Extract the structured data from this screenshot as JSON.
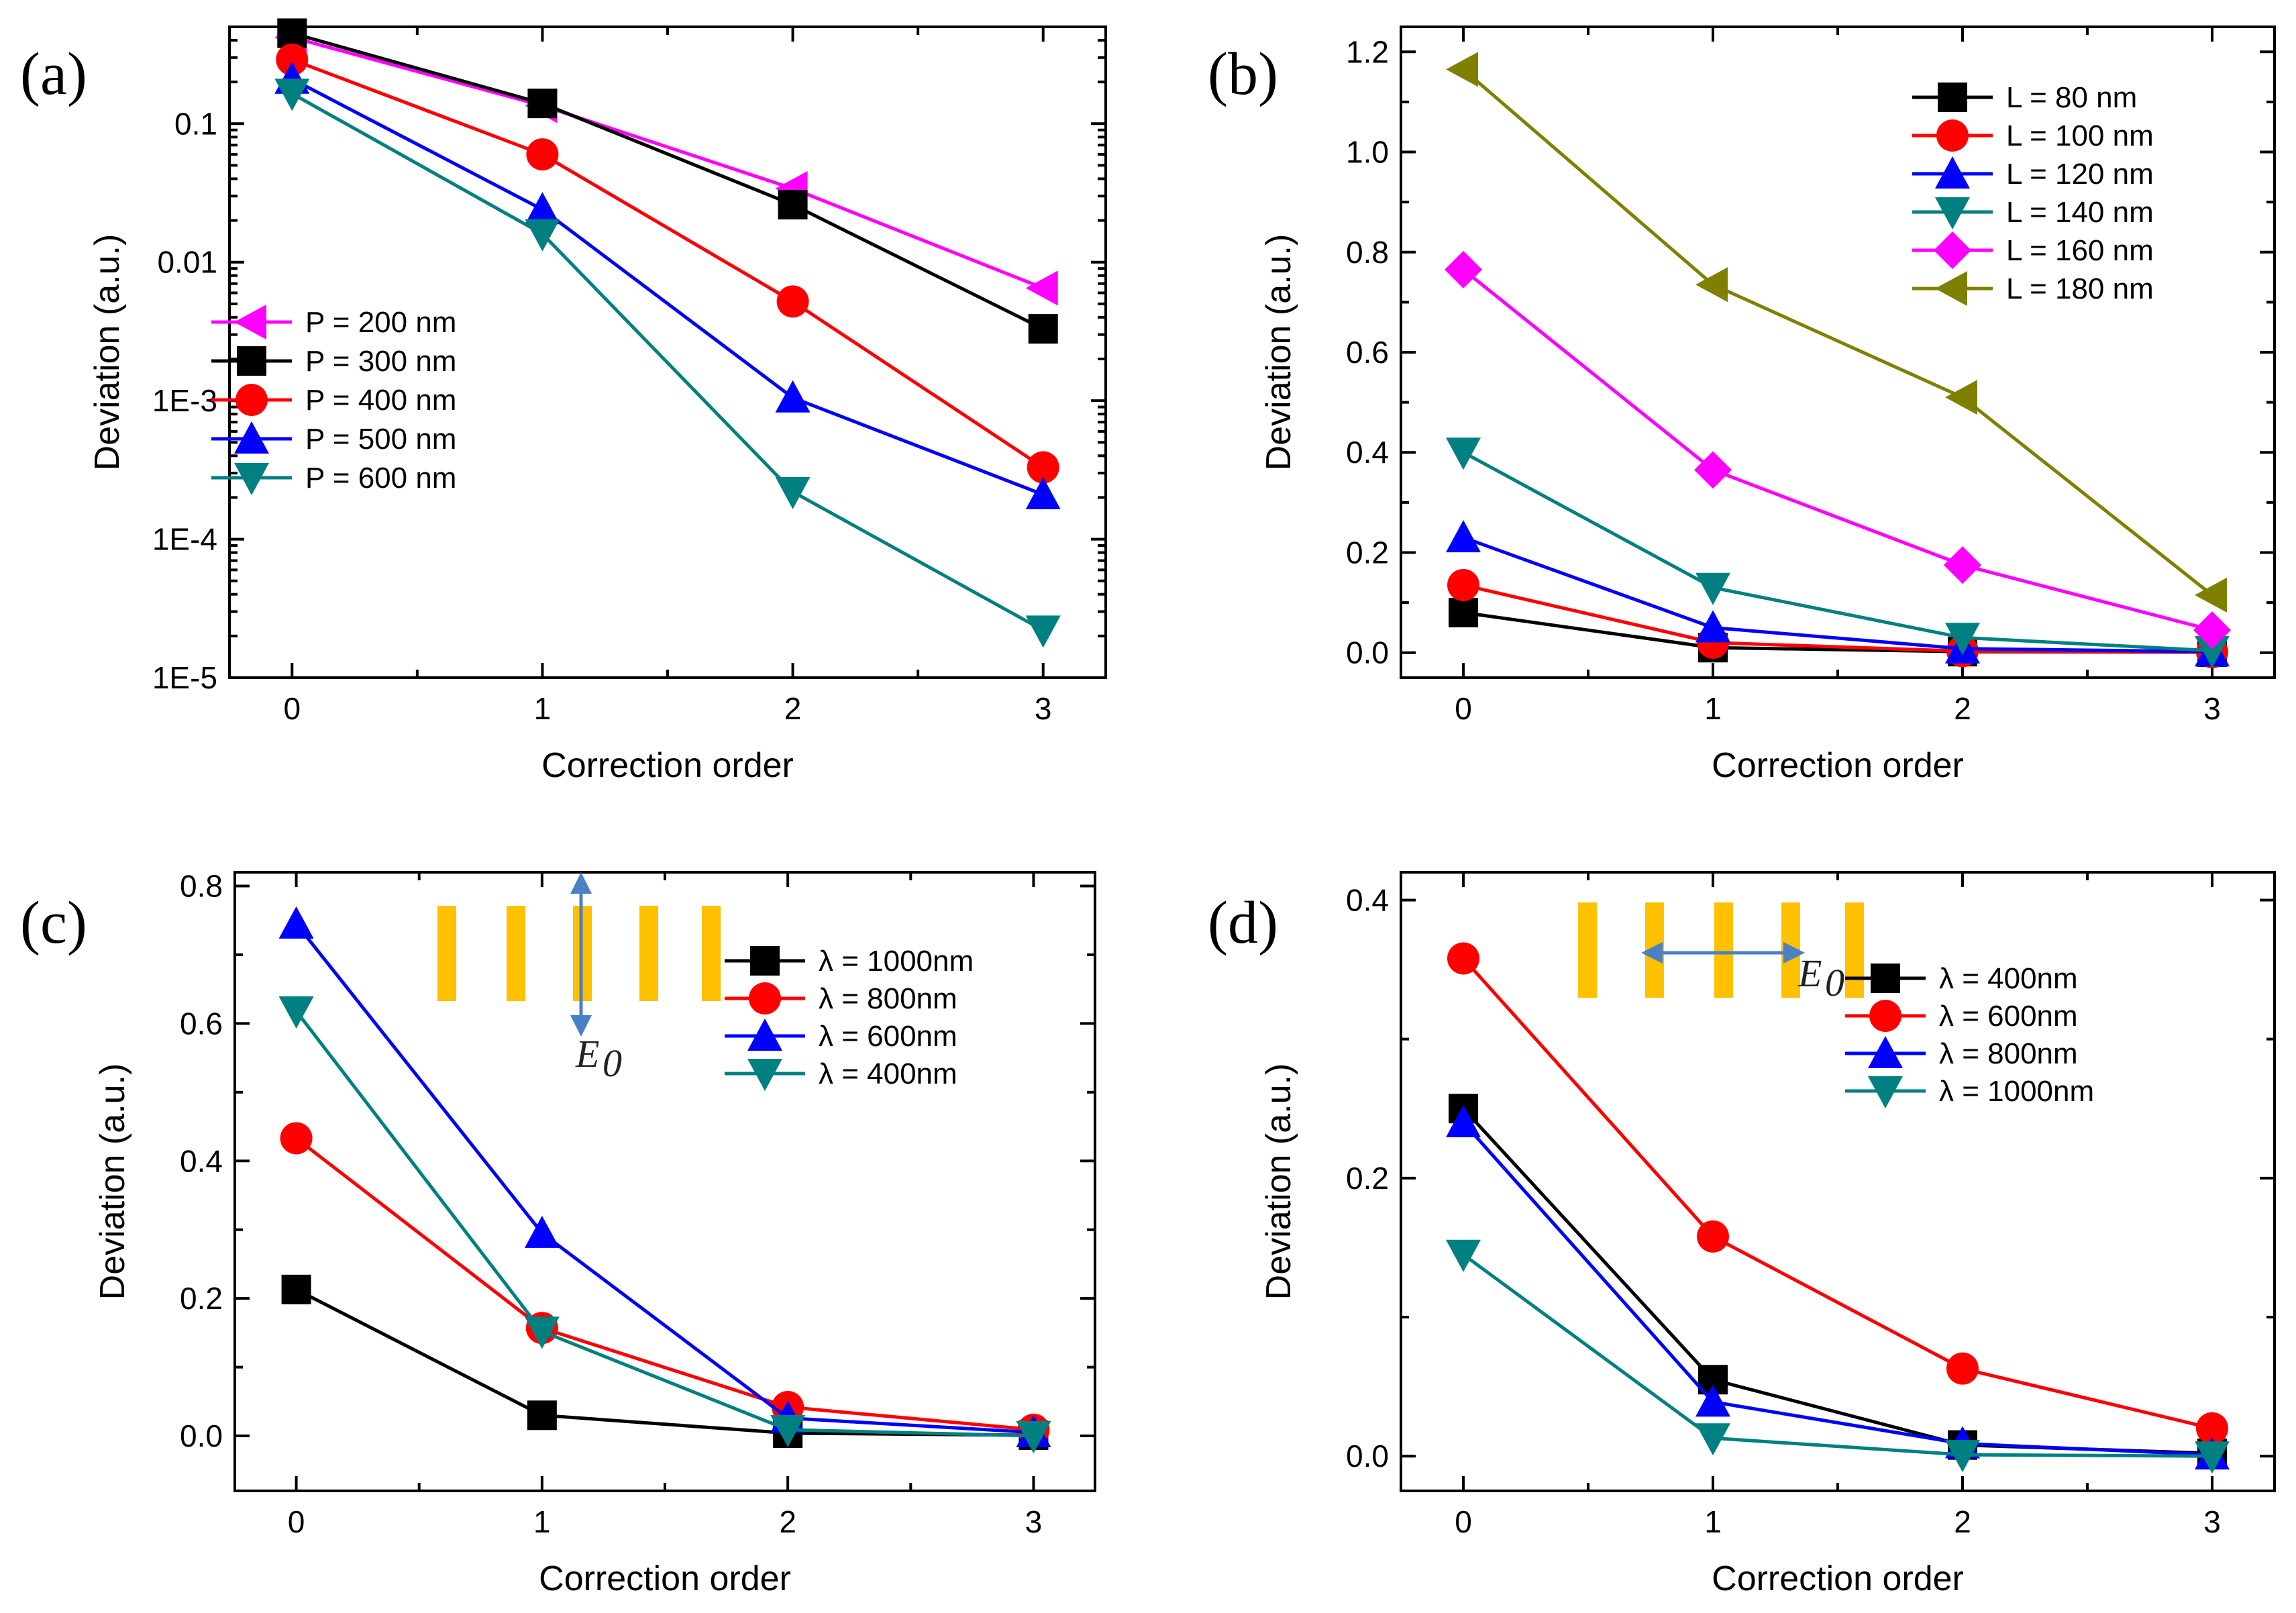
{
  "chart_data": [
    {
      "type": "line",
      "panel_label": "(a)",
      "xlabel": "Correction order",
      "ylabel": "Deviation (a.u.)",
      "yscale": "log",
      "ylim": [
        1e-05,
        0.5
      ],
      "xlim": [
        -0.25,
        3.25
      ],
      "x": [
        0,
        1,
        2,
        3
      ],
      "xticks": [
        "0",
        "1",
        "2",
        "3"
      ],
      "yticks": [
        {
          "value": 1e-05,
          "label": "1E-5"
        },
        {
          "value": 0.0001,
          "label": "1E-4"
        },
        {
          "value": 0.001,
          "label": "1E-3"
        },
        {
          "value": 0.01,
          "label": "0.01"
        },
        {
          "value": 0.1,
          "label": "0.1"
        }
      ],
      "legend_position": "middle-left",
      "series": [
        {
          "name": "P = 200 nm",
          "color": "#ff00ff",
          "marker": "triangle-left",
          "values": [
            0.42,
            0.135,
            0.034,
            0.0065
          ]
        },
        {
          "name": "P = 300 nm",
          "color": "#000000",
          "marker": "square",
          "values": [
            0.45,
            0.14,
            0.026,
            0.0033
          ]
        },
        {
          "name": "P = 400 nm",
          "color": "#ff0000",
          "marker": "circle",
          "values": [
            0.29,
            0.06,
            0.0052,
            0.00033
          ]
        },
        {
          "name": "P = 500 nm",
          "color": "#0000ff",
          "marker": "triangle-up",
          "values": [
            0.21,
            0.024,
            0.00105,
            0.00021
          ]
        },
        {
          "name": "P = 600 nm",
          "color": "#008080",
          "marker": "triangle-down",
          "values": [
            0.165,
            0.016,
            0.00022,
            2.2e-05
          ]
        }
      ]
    },
    {
      "type": "line",
      "panel_label": "(b)",
      "xlabel": "Correction order",
      "ylabel": "Deviation (a.u.)",
      "yscale": "linear",
      "ylim": [
        -0.05,
        1.25
      ],
      "xlim": [
        -0.25,
        3.25
      ],
      "x": [
        0,
        1,
        2,
        3
      ],
      "xticks": [
        "0",
        "1",
        "2",
        "3"
      ],
      "yticks": [
        {
          "value": 0.0,
          "label": "0.0"
        },
        {
          "value": 0.2,
          "label": "0.2"
        },
        {
          "value": 0.4,
          "label": "0.4"
        },
        {
          "value": 0.6,
          "label": "0.6"
        },
        {
          "value": 0.8,
          "label": "0.8"
        },
        {
          "value": 1.0,
          "label": "1.0"
        },
        {
          "value": 1.2,
          "label": "1.2"
        }
      ],
      "legend_position": "top-right",
      "series": [
        {
          "name": "L = 80 nm",
          "color": "#000000",
          "marker": "square",
          "values": [
            0.08,
            0.01,
            0.002,
            0.001
          ]
        },
        {
          "name": "L = 100 nm",
          "color": "#ff0000",
          "marker": "circle",
          "values": [
            0.135,
            0.02,
            0.003,
            0.001
          ]
        },
        {
          "name": "L = 120 nm",
          "color": "#0000ff",
          "marker": "triangle-up",
          "values": [
            0.23,
            0.05,
            0.008,
            0.002
          ]
        },
        {
          "name": "L = 140 nm",
          "color": "#008080",
          "marker": "triangle-down",
          "values": [
            0.4,
            0.13,
            0.03,
            0.004
          ]
        },
        {
          "name": "L = 160 nm",
          "color": "#ff00ff",
          "marker": "diamond",
          "values": [
            0.765,
            0.365,
            0.175,
            0.045
          ]
        },
        {
          "name": "L = 180 nm",
          "color": "#808000",
          "marker": "triangle-left",
          "values": [
            1.165,
            0.735,
            0.51,
            0.115
          ]
        }
      ]
    },
    {
      "type": "line",
      "panel_label": "(c)",
      "xlabel": "Correction order",
      "ylabel": "Deviation (a.u.)",
      "yscale": "linear",
      "ylim": [
        -0.08,
        0.82
      ],
      "xlim": [
        -0.25,
        3.25
      ],
      "x": [
        0,
        1,
        2,
        3
      ],
      "xticks": [
        "0",
        "1",
        "2",
        "3"
      ],
      "yticks": [
        {
          "value": 0.0,
          "label": "0.0"
        },
        {
          "value": 0.2,
          "label": "0.2"
        },
        {
          "value": 0.4,
          "label": "0.4"
        },
        {
          "value": 0.6,
          "label": "0.6"
        },
        {
          "value": 0.8,
          "label": "0.8"
        }
      ],
      "legend_position": "top-right",
      "inset": {
        "label": "E0",
        "field_direction": "vertical",
        "bars": 5
      },
      "series": [
        {
          "name": "λ = 1000nm",
          "color": "#000000",
          "marker": "square",
          "values": [
            0.213,
            0.03,
            0.004,
            0.001
          ]
        },
        {
          "name": "λ = 800nm",
          "color": "#ff0000",
          "marker": "circle",
          "values": [
            0.433,
            0.157,
            0.042,
            0.009
          ]
        },
        {
          "name": "λ = 600nm",
          "color": "#0000ff",
          "marker": "triangle-up",
          "values": [
            0.745,
            0.295,
            0.026,
            0.005
          ]
        },
        {
          "name": "λ = 400nm",
          "color": "#008080",
          "marker": "triangle-down",
          "values": [
            0.618,
            0.152,
            0.009,
            0.0
          ]
        }
      ]
    },
    {
      "type": "line",
      "panel_label": "(d)",
      "xlabel": "Correction order",
      "ylabel": "Deviation (a.u.)",
      "yscale": "linear",
      "ylim": [
        -0.025,
        0.42
      ],
      "xlim": [
        -0.25,
        3.25
      ],
      "x": [
        0,
        1,
        2,
        3
      ],
      "xticks": [
        "0",
        "1",
        "2",
        "3"
      ],
      "yticks": [
        {
          "value": 0.0,
          "label": "0.0"
        },
        {
          "value": 0.2,
          "label": "0.2"
        },
        {
          "value": 0.4,
          "label": "0.4"
        }
      ],
      "legend_position": "top-right",
      "inset": {
        "label": "E0",
        "field_direction": "horizontal",
        "bars": 5
      },
      "series": [
        {
          "name": "λ = 400nm",
          "color": "#000000",
          "marker": "square",
          "values": [
            0.25,
            0.055,
            0.008,
            0.002
          ]
        },
        {
          "name": "λ = 600nm",
          "color": "#ff0000",
          "marker": "circle",
          "values": [
            0.358,
            0.158,
            0.063,
            0.02
          ]
        },
        {
          "name": "λ = 800nm",
          "color": "#0000ff",
          "marker": "triangle-up",
          "values": [
            0.24,
            0.039,
            0.009,
            0.001
          ]
        },
        {
          "name": "λ = 1000nm",
          "color": "#008080",
          "marker": "triangle-down",
          "values": [
            0.145,
            0.013,
            0.001,
            0.0
          ]
        }
      ]
    }
  ]
}
